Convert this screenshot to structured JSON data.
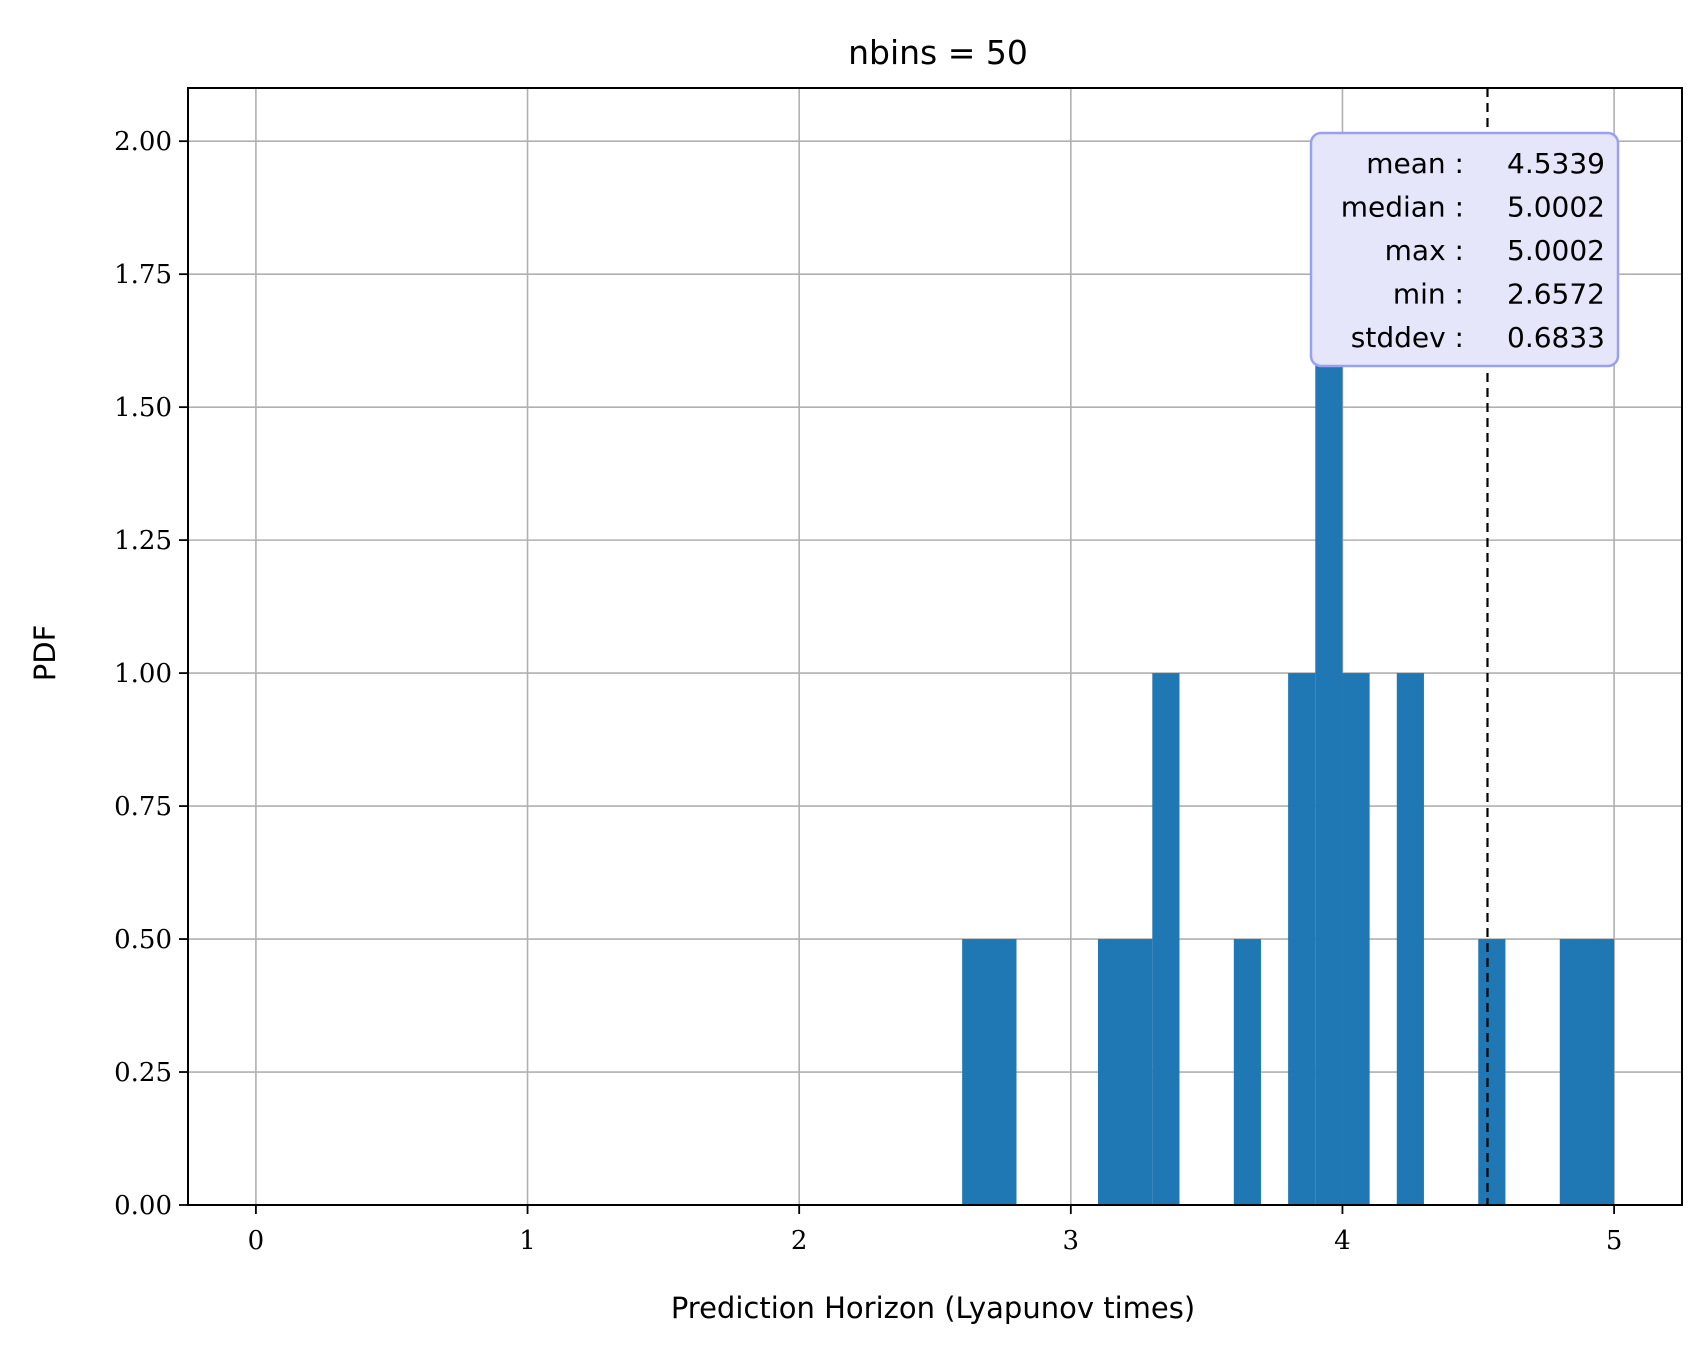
{
  "chart_data": {
    "type": "bar",
    "title": "nbins = 50",
    "xlabel": "Prediction Horizon (Lyapunov times)",
    "ylabel": "PDF",
    "xlim": [
      -0.25,
      5.25
    ],
    "ylim": [
      0,
      2.1
    ],
    "xticks": [
      0,
      1,
      2,
      3,
      4,
      5
    ],
    "xtick_labels": [
      "0",
      "1",
      "2",
      "3",
      "4",
      "5"
    ],
    "yticks": [
      0,
      0.25,
      0.5,
      0.75,
      1.0,
      1.25,
      1.5,
      1.75,
      2.0
    ],
    "ytick_labels": [
      "0.00",
      "0.25",
      "0.50",
      "0.75",
      "1.00",
      "1.25",
      "1.50",
      "1.75",
      "2.00"
    ],
    "grid": true,
    "bar_color": "#1f77b4",
    "bins": [
      {
        "x0": 2.6,
        "x1": 2.8,
        "value": 0.5
      },
      {
        "x0": 3.1,
        "x1": 3.3,
        "value": 0.5
      },
      {
        "x0": 3.3,
        "x1": 3.4,
        "value": 1.0
      },
      {
        "x0": 3.6,
        "x1": 3.7,
        "value": 0.5
      },
      {
        "x0": 3.8,
        "x1": 3.9,
        "value": 1.0
      },
      {
        "x0": 3.9,
        "x1": 4.0,
        "value": 2.0
      },
      {
        "x0": 4.0,
        "x1": 4.1,
        "value": 1.0
      },
      {
        "x0": 4.2,
        "x1": 4.3,
        "value": 1.0
      },
      {
        "x0": 4.5,
        "x1": 4.6,
        "value": 0.5
      },
      {
        "x0": 4.8,
        "x1": 5.0,
        "value": 0.5
      }
    ],
    "mean_line": {
      "x": 4.5339,
      "color": "#000000",
      "style": "dashed"
    },
    "stats_box": {
      "placement": "top-right",
      "face_color": "#e6e6fa",
      "edge_color": "#9aa0f0",
      "rows": [
        {
          "label": "mean",
          "value": "4.5339"
        },
        {
          "label": "median",
          "value": "5.0002"
        },
        {
          "label": "max",
          "value": "5.0002"
        },
        {
          "label": "min",
          "value": "2.6572"
        },
        {
          "label": "stddev",
          "value": "0.6833"
        }
      ]
    }
  }
}
